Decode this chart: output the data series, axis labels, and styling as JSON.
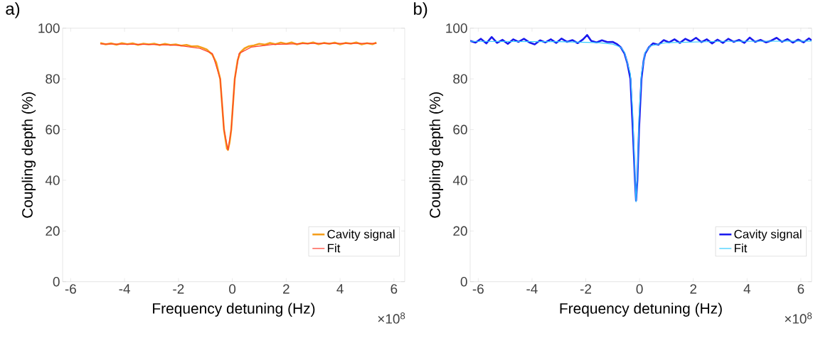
{
  "chart_data": [
    {
      "type": "line",
      "title": "a)",
      "xlabel": "Frequency detuning (Hz)",
      "ylabel": "Coupling depth (%)",
      "annotations": [
        "×10$^{8}$"
      ],
      "xlim": [
        -6.3,
        6.4
      ],
      "ylim": [
        0,
        100
      ],
      "xticks": [
        -6,
        -4,
        -2,
        0,
        2,
        4,
        6
      ],
      "yticks": [
        0,
        20,
        40,
        60,
        80,
        100
      ],
      "legend": "bottom right",
      "marker": "none",
      "line_style": "solid",
      "series": [
        {
          "name": "Cavity signal",
          "color": "#f59e1b",
          "x": [
            -4.9,
            -4.7,
            -4.5,
            -4.3,
            -4.1,
            -3.9,
            -3.7,
            -3.5,
            -3.3,
            -3.1,
            -2.9,
            -2.7,
            -2.5,
            -2.3,
            -2.1,
            -1.9,
            -1.7,
            -1.5,
            -1.3,
            -1.1,
            -0.95,
            -0.85,
            -0.74,
            -0.6,
            -0.45,
            -0.31,
            -0.2,
            -0.16,
            -0.1,
            -0.04,
            0.09,
            0.2,
            0.3,
            0.45,
            0.6,
            0.8,
            1.0,
            1.2,
            1.4,
            1.6,
            1.8,
            2.0,
            2.2,
            2.4,
            2.6,
            2.8,
            3.0,
            3.2,
            3.4,
            3.6,
            3.8,
            4.0,
            4.2,
            4.4,
            4.6,
            4.8,
            5.0,
            5.2,
            5.35
          ],
          "values": [
            94.2,
            93.6,
            94.0,
            93.5,
            94.1,
            93.7,
            94.0,
            93.4,
            93.9,
            93.6,
            93.9,
            93.3,
            93.8,
            93.4,
            93.6,
            93.1,
            93.4,
            92.8,
            92.9,
            92.2,
            91.6,
            90.6,
            89.5,
            86.5,
            80,
            60,
            52.5,
            52,
            55,
            60,
            80,
            87.5,
            90.5,
            92,
            92.8,
            93.2,
            93.8,
            93.5,
            94.2,
            93.7,
            94.3,
            93.8,
            94.4,
            93.6,
            94.2,
            93.9,
            94.4,
            93.7,
            94.2,
            93.8,
            94.3,
            93.6,
            94.2,
            93.9,
            94.4,
            93.6,
            94.1,
            93.7,
            94.3
          ]
        },
        {
          "name": "Fit",
          "color": "#ff3a2a",
          "x": [
            -4.9,
            -3,
            -2,
            -1.2,
            -0.74,
            -0.45,
            -0.31,
            -0.16,
            -0.04,
            0.09,
            0.25,
            0.7,
            1.5,
            3,
            5.35
          ],
          "values": [
            93.8,
            93.6,
            93.2,
            92,
            90,
            80,
            60,
            52,
            60,
            80,
            90,
            92.5,
            93.6,
            94,
            94
          ]
        }
      ]
    },
    {
      "type": "line",
      "title": "b)",
      "xlabel": "Frequency detuning (Hz)",
      "ylabel": "Coupling depth (%)",
      "annotations": [
        "×10$^{8}$"
      ],
      "xlim": [
        -6.3,
        6.4
      ],
      "ylim": [
        0,
        100
      ],
      "xticks": [
        -6,
        -4,
        -2,
        0,
        2,
        4,
        6
      ],
      "yticks": [
        0,
        20,
        40,
        60,
        80,
        100
      ],
      "legend": "bottom right",
      "marker": "none",
      "line_style": "solid",
      "series": [
        {
          "name": "Cavity signal",
          "color": "#1a1aee",
          "x": [
            -6.3,
            -6.1,
            -5.9,
            -5.7,
            -5.5,
            -5.3,
            -5.1,
            -4.9,
            -4.7,
            -4.5,
            -4.3,
            -4.1,
            -3.9,
            -3.7,
            -3.5,
            -3.3,
            -3.1,
            -2.9,
            -2.7,
            -2.5,
            -2.3,
            -2.1,
            -1.95,
            -1.8,
            -1.6,
            -1.4,
            -1.2,
            -1.0,
            -0.85,
            -0.7,
            -0.56,
            -0.45,
            -0.34,
            -0.25,
            -0.17,
            -0.13,
            -0.08,
            -0.02,
            0.07,
            0.15,
            0.21,
            0.35,
            0.5,
            0.7,
            0.9,
            1.1,
            1.3,
            1.5,
            1.7,
            1.9,
            2.1,
            2.3,
            2.5,
            2.7,
            2.9,
            3.1,
            3.3,
            3.5,
            3.7,
            3.9,
            4.1,
            4.3,
            4.5,
            4.7,
            4.9,
            5.1,
            5.3,
            5.5,
            5.7,
            5.9,
            6.1,
            6.3,
            6.4
          ],
          "values": [
            95,
            94.3,
            95.8,
            94.0,
            96.5,
            94.2,
            95.4,
            93.8,
            95.6,
            94.6,
            95.8,
            94.4,
            93.6,
            95.2,
            94.4,
            95.6,
            94.2,
            95.9,
            94.6,
            95.3,
            94.1,
            95.6,
            97.3,
            95.0,
            94.4,
            95.2,
            94.5,
            94.6,
            93.8,
            92.5,
            90,
            86,
            80,
            60,
            40,
            32,
            40,
            60,
            80,
            87,
            90,
            92.5,
            94,
            93.5,
            95.3,
            94.4,
            95.6,
            94.2,
            95.8,
            94.8,
            96.2,
            94.5,
            95.6,
            94.0,
            95.5,
            94.2,
            95.8,
            94.6,
            95.4,
            94.2,
            96.3,
            94.6,
            95.4,
            94.4,
            95.1,
            96.2,
            94.6,
            95.7,
            94.3,
            95.5,
            94.4,
            96.0,
            95.2
          ]
        },
        {
          "name": "Fit",
          "color": "#33ccff",
          "x": [
            -6.3,
            -3,
            -1.5,
            -1,
            -0.7,
            -0.56,
            -0.34,
            -0.25,
            -0.17,
            -0.13,
            -0.08,
            -0.02,
            0.07,
            0.21,
            0.4,
            1,
            3,
            6.4
          ],
          "values": [
            94.8,
            94.7,
            94.3,
            93.7,
            92.5,
            90.5,
            82,
            66,
            42,
            31.5,
            42,
            65,
            82,
            90.5,
            93,
            94.3,
            94.8,
            94.9
          ]
        }
      ]
    }
  ]
}
